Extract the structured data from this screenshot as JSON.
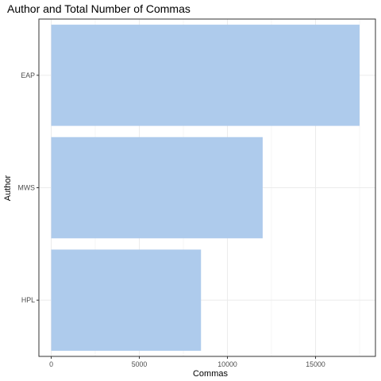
{
  "chart_data": {
    "type": "bar",
    "orientation": "horizontal",
    "title": "Author and Total Number of Commas",
    "xlabel": "Commas",
    "ylabel": "Author",
    "categories": [
      "EAP",
      "MWS",
      "HPL"
    ],
    "values": [
      17500,
      12000,
      8500
    ],
    "xlim": [
      -700,
      18400
    ],
    "x_ticks": [
      0,
      5000,
      10000,
      15000
    ],
    "x_tick_labels": [
      "0",
      "5000",
      "10000",
      "15000"
    ],
    "grid": true,
    "bar_color": "#aecbec",
    "panel_border_color": "#333333",
    "grid_color": "#ebebeb"
  }
}
